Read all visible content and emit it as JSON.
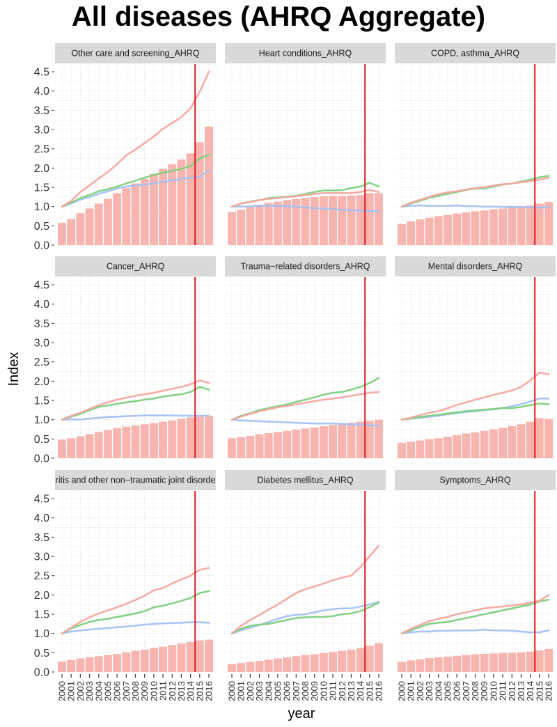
{
  "title": "All diseases (AHRQ Aggregate)",
  "colors": {
    "bar": "#f8b4ae",
    "series_pink": "#f4a6a1",
    "series_green": "#7ed07e",
    "series_blue": "#a4c2f4",
    "vline": "#e41a1c",
    "strip": "#d9d9d9",
    "grid": "#d7d7d7"
  },
  "chart_data": {
    "type": "bar+line",
    "title": "All diseases (AHRQ Aggregate)",
    "xlabel": "year",
    "ylabel": "Index",
    "ylim": [
      0,
      4.7
    ],
    "yticks": [
      "0.0",
      "0.5",
      "1.0",
      "1.5",
      "2.0",
      "2.5",
      "3.0",
      "3.5",
      "4.0",
      "4.5"
    ],
    "years": [
      "2000",
      "2001",
      "2002",
      "2003",
      "2004",
      "2005",
      "2006",
      "2007",
      "2008",
      "2009",
      "2010",
      "2011",
      "2012",
      "2013",
      "2014",
      "2015",
      "2016"
    ],
    "vline_year": 2014.5,
    "series_names": [
      "pink",
      "green",
      "blue"
    ],
    "panels": [
      {
        "label": "Other care and screening_AHRQ",
        "bars": [
          0.58,
          0.68,
          0.83,
          0.95,
          1.08,
          1.2,
          1.35,
          1.48,
          1.6,
          1.72,
          1.85,
          1.98,
          2.1,
          2.22,
          2.38,
          2.67,
          3.08
        ],
        "pink": [
          1.0,
          1.15,
          1.38,
          1.55,
          1.73,
          1.9,
          2.1,
          2.33,
          2.48,
          2.65,
          2.82,
          3.02,
          3.17,
          3.32,
          3.55,
          3.98,
          4.5
        ],
        "green": [
          1.0,
          1.1,
          1.22,
          1.3,
          1.4,
          1.45,
          1.52,
          1.6,
          1.67,
          1.75,
          1.82,
          1.88,
          1.93,
          1.98,
          2.05,
          2.25,
          2.35
        ],
        "blue": [
          1.0,
          1.08,
          1.18,
          1.25,
          1.33,
          1.4,
          1.47,
          1.52,
          1.55,
          1.57,
          1.6,
          1.65,
          1.68,
          1.72,
          1.75,
          1.77,
          1.93
        ]
      },
      {
        "label": "Heart conditions_AHRQ",
        "bars": [
          0.86,
          0.92,
          1.0,
          1.05,
          1.1,
          1.13,
          1.17,
          1.2,
          1.23,
          1.25,
          1.27,
          1.28,
          1.28,
          1.29,
          1.3,
          1.35,
          1.35
        ],
        "pink": [
          1.0,
          1.08,
          1.12,
          1.17,
          1.2,
          1.22,
          1.25,
          1.27,
          1.3,
          1.33,
          1.35,
          1.35,
          1.35,
          1.35,
          1.38,
          1.43,
          1.38
        ],
        "green": [
          1.0,
          1.08,
          1.13,
          1.17,
          1.22,
          1.24,
          1.26,
          1.28,
          1.33,
          1.38,
          1.42,
          1.42,
          1.43,
          1.48,
          1.52,
          1.62,
          1.52
        ],
        "blue": [
          1.0,
          1.0,
          1.01,
          1.02,
          1.02,
          1.02,
          1.01,
          1.0,
          0.98,
          0.96,
          0.95,
          0.93,
          0.92,
          0.9,
          0.89,
          0.88,
          0.88
        ]
      },
      {
        "label": "COPD, asthma_AHRQ",
        "bars": [
          0.55,
          0.62,
          0.67,
          0.71,
          0.75,
          0.78,
          0.82,
          0.85,
          0.88,
          0.9,
          0.93,
          0.95,
          0.97,
          1.0,
          1.03,
          1.08,
          1.12
        ],
        "pink": [
          1.0,
          1.1,
          1.18,
          1.25,
          1.32,
          1.37,
          1.4,
          1.44,
          1.48,
          1.5,
          1.55,
          1.58,
          1.6,
          1.63,
          1.66,
          1.7,
          1.75
        ],
        "green": [
          1.0,
          1.08,
          1.15,
          1.23,
          1.28,
          1.33,
          1.38,
          1.43,
          1.47,
          1.47,
          1.52,
          1.57,
          1.6,
          1.65,
          1.7,
          1.76,
          1.8
        ],
        "blue": [
          1.0,
          1.02,
          1.03,
          1.02,
          1.02,
          1.02,
          1.03,
          1.01,
          1.01,
          1.0,
          1.0,
          0.99,
          0.99,
          0.99,
          0.98,
          0.98,
          0.98
        ]
      },
      {
        "label": "Cancer_AHRQ",
        "bars": [
          0.48,
          0.52,
          0.57,
          0.62,
          0.68,
          0.73,
          0.78,
          0.82,
          0.85,
          0.88,
          0.91,
          0.95,
          0.98,
          1.02,
          1.06,
          1.08,
          1.1
        ],
        "pink": [
          1.0,
          1.1,
          1.18,
          1.28,
          1.38,
          1.45,
          1.52,
          1.57,
          1.62,
          1.66,
          1.7,
          1.75,
          1.8,
          1.85,
          1.92,
          2.02,
          1.95
        ],
        "green": [
          1.0,
          1.08,
          1.15,
          1.25,
          1.33,
          1.37,
          1.41,
          1.45,
          1.48,
          1.52,
          1.55,
          1.6,
          1.63,
          1.66,
          1.72,
          1.85,
          1.78
        ],
        "blue": [
          1.0,
          1.01,
          1.0,
          1.03,
          1.05,
          1.07,
          1.08,
          1.09,
          1.1,
          1.11,
          1.11,
          1.11,
          1.11,
          1.1,
          1.1,
          1.1,
          1.1
        ]
      },
      {
        "label": "Trauma−related disorders_AHRQ",
        "bars": [
          0.52,
          0.55,
          0.58,
          0.62,
          0.65,
          0.68,
          0.71,
          0.74,
          0.77,
          0.8,
          0.83,
          0.86,
          0.89,
          0.92,
          0.95,
          0.97,
          1.0
        ],
        "pink": [
          1.0,
          1.08,
          1.15,
          1.22,
          1.27,
          1.32,
          1.36,
          1.4,
          1.44,
          1.48,
          1.52,
          1.55,
          1.58,
          1.62,
          1.66,
          1.7,
          1.72
        ],
        "green": [
          1.0,
          1.1,
          1.17,
          1.25,
          1.3,
          1.35,
          1.4,
          1.46,
          1.52,
          1.58,
          1.65,
          1.7,
          1.72,
          1.78,
          1.85,
          1.95,
          2.08
        ],
        "blue": [
          1.0,
          0.98,
          0.97,
          0.96,
          0.95,
          0.94,
          0.93,
          0.92,
          0.91,
          0.9,
          0.9,
          0.9,
          0.89,
          0.88,
          0.88,
          0.86,
          0.84
        ]
      },
      {
        "label": "Mental disorders_AHRQ",
        "bars": [
          0.4,
          0.43,
          0.46,
          0.49,
          0.52,
          0.56,
          0.6,
          0.64,
          0.67,
          0.71,
          0.75,
          0.79,
          0.83,
          0.88,
          0.95,
          1.04,
          1.02
        ],
        "pink": [
          1.0,
          1.05,
          1.12,
          1.18,
          1.22,
          1.3,
          1.38,
          1.45,
          1.52,
          1.58,
          1.64,
          1.7,
          1.76,
          1.85,
          2.02,
          2.22,
          2.18
        ],
        "green": [
          1.0,
          1.03,
          1.07,
          1.1,
          1.13,
          1.16,
          1.19,
          1.22,
          1.24,
          1.26,
          1.28,
          1.3,
          1.3,
          1.33,
          1.38,
          1.42,
          1.4
        ],
        "blue": [
          1.0,
          1.03,
          1.05,
          1.08,
          1.1,
          1.14,
          1.17,
          1.2,
          1.22,
          1.25,
          1.27,
          1.3,
          1.35,
          1.4,
          1.47,
          1.55,
          1.55
        ]
      },
      {
        "label": "ritis and other non−traumatic joint disorde",
        "bars": [
          0.27,
          0.31,
          0.35,
          0.38,
          0.41,
          0.44,
          0.47,
          0.51,
          0.55,
          0.58,
          0.62,
          0.66,
          0.7,
          0.74,
          0.78,
          0.82,
          0.84
        ],
        "pink": [
          1.0,
          1.15,
          1.3,
          1.42,
          1.52,
          1.6,
          1.68,
          1.77,
          1.87,
          1.98,
          2.12,
          2.18,
          2.3,
          2.4,
          2.5,
          2.65,
          2.7
        ],
        "green": [
          1.0,
          1.13,
          1.22,
          1.3,
          1.35,
          1.38,
          1.43,
          1.47,
          1.52,
          1.58,
          1.68,
          1.72,
          1.78,
          1.85,
          1.92,
          2.05,
          2.1
        ],
        "blue": [
          1.0,
          1.05,
          1.08,
          1.1,
          1.12,
          1.14,
          1.16,
          1.18,
          1.2,
          1.23,
          1.25,
          1.26,
          1.27,
          1.28,
          1.29,
          1.29,
          1.28
        ]
      },
      {
        "label": "Diabetes mellitus_AHRQ",
        "bars": [
          0.2,
          0.23,
          0.26,
          0.29,
          0.32,
          0.35,
          0.38,
          0.41,
          0.44,
          0.46,
          0.49,
          0.52,
          0.55,
          0.58,
          0.62,
          0.68,
          0.75
        ],
        "pink": [
          1.0,
          1.2,
          1.35,
          1.48,
          1.62,
          1.75,
          1.9,
          2.05,
          2.15,
          2.22,
          2.3,
          2.38,
          2.45,
          2.5,
          2.72,
          3.0,
          3.28
        ],
        "green": [
          1.0,
          1.12,
          1.2,
          1.23,
          1.25,
          1.3,
          1.35,
          1.4,
          1.42,
          1.43,
          1.43,
          1.45,
          1.5,
          1.52,
          1.58,
          1.68,
          1.8
        ],
        "blue": [
          1.0,
          1.08,
          1.15,
          1.22,
          1.3,
          1.38,
          1.45,
          1.48,
          1.5,
          1.55,
          1.6,
          1.63,
          1.65,
          1.65,
          1.7,
          1.75,
          1.82
        ]
      },
      {
        "label": "Symptoms_AHRQ",
        "bars": [
          0.26,
          0.3,
          0.33,
          0.36,
          0.38,
          0.4,
          0.42,
          0.44,
          0.46,
          0.47,
          0.48,
          0.49,
          0.5,
          0.51,
          0.53,
          0.56,
          0.6
        ],
        "pink": [
          1.0,
          1.12,
          1.22,
          1.32,
          1.38,
          1.43,
          1.5,
          1.55,
          1.6,
          1.65,
          1.68,
          1.7,
          1.73,
          1.75,
          1.8,
          1.85,
          2.0
        ],
        "green": [
          1.0,
          1.08,
          1.17,
          1.25,
          1.28,
          1.3,
          1.35,
          1.4,
          1.45,
          1.5,
          1.55,
          1.6,
          1.65,
          1.7,
          1.75,
          1.83,
          1.88
        ],
        "blue": [
          1.0,
          1.03,
          1.05,
          1.05,
          1.07,
          1.07,
          1.08,
          1.08,
          1.08,
          1.1,
          1.08,
          1.08,
          1.07,
          1.05,
          1.03,
          1.03,
          1.08
        ]
      }
    ]
  }
}
